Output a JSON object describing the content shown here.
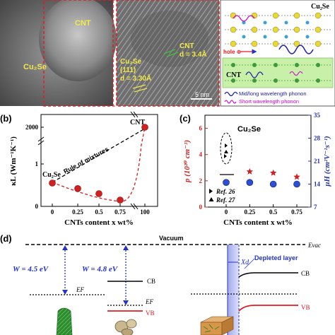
{
  "panel_a": {
    "label_cnt": "CNT",
    "label_cu2se": "Cu₂Se",
    "hr_label_cu2se": "Cu₂Se",
    "hr_label_111": "(111)",
    "hr_label_d1": "d = 3.30Å",
    "hr_label_cnt": "CNT",
    "hr_label_d2": "d = 3.4Å",
    "scale": "5 nm",
    "schematic_title": "Cu₂Se",
    "hole_label": "hole ⊕",
    "cnt_label": "CNT",
    "legend_mid": "Mid/long wavelength phonon",
    "legend_short": "Short wavelength phonon"
  },
  "panel_b": {
    "tag": "(b)",
    "cnt_point_label": "CNT",
    "cu2se_point_label": "Cu₂Se",
    "mixture_label": "Rule of mixtures",
    "ylabel": "κL (Wm⁻¹K⁻¹)",
    "xlabel": "CNTs content x wt%",
    "xticks": [
      "0",
      "0.25",
      "0.5",
      "0.75",
      "100"
    ],
    "yticks": [
      "0",
      "1",
      "2000"
    ]
  },
  "panel_c": {
    "tag": "(c)",
    "series_label": "Cu₂Se",
    "ylabel_left": "p (10²⁰ cm⁻³)",
    "ylabel_right": "μH (cm²V⁻¹s⁻¹)",
    "xlabel": "CNTs content x wt%",
    "xticks": [
      "0",
      "0.25",
      "0.5",
      "0.75"
    ],
    "yticks_left": [
      "0",
      "2",
      "4",
      "6"
    ],
    "yticks_right": [
      "7",
      "14",
      "21",
      "28",
      "35"
    ],
    "ref26": "Ref. 26",
    "ref27": "Ref. 27"
  },
  "panel_d": {
    "tag": "(d)",
    "vacuum": "Vacuum",
    "evac": "Evac",
    "w1": "W = 4.5 eV",
    "w2": "W = 4.8 eV",
    "ef1": "EF",
    "ef2": "EF",
    "cb1": "CB",
    "vb1": "VB",
    "xd": "Xd",
    "depleted": "Depleted layer",
    "cb2": "CB",
    "vb2": "VB"
  },
  "chart_data": [
    {
      "type": "scatter",
      "panel": "b",
      "xlabel": "CNTs content x wt%",
      "ylabel": "κL (Wm⁻¹K⁻¹)",
      "categories": [
        "0",
        "0.25",
        "0.5",
        "0.75",
        "100"
      ],
      "series": [
        {
          "values": [
            0.55,
            0.42,
            0.3,
            0.15,
            2000
          ]
        }
      ],
      "ylim": [
        0,
        2000
      ]
    },
    {
      "type": "scatter",
      "panel": "c",
      "xlabel": "CNTs content x wt%",
      "ylabel": "p (10²⁰ cm⁻³)",
      "ylabel_right": "μH (cm²V⁻¹s⁻¹)",
      "x": [
        0,
        0.25,
        0.5,
        0.75
      ],
      "series": [
        {
          "values": [
            5.2,
            2.7,
            2.6,
            2.3
          ],
          "axis": "left"
        },
        {
          "values": [
            14.5,
            14.5,
            14,
            14
          ],
          "axis": "right"
        }
      ],
      "ylim_left": [
        0,
        7
      ],
      "ylim_right": [
        7,
        35
      ]
    }
  ]
}
